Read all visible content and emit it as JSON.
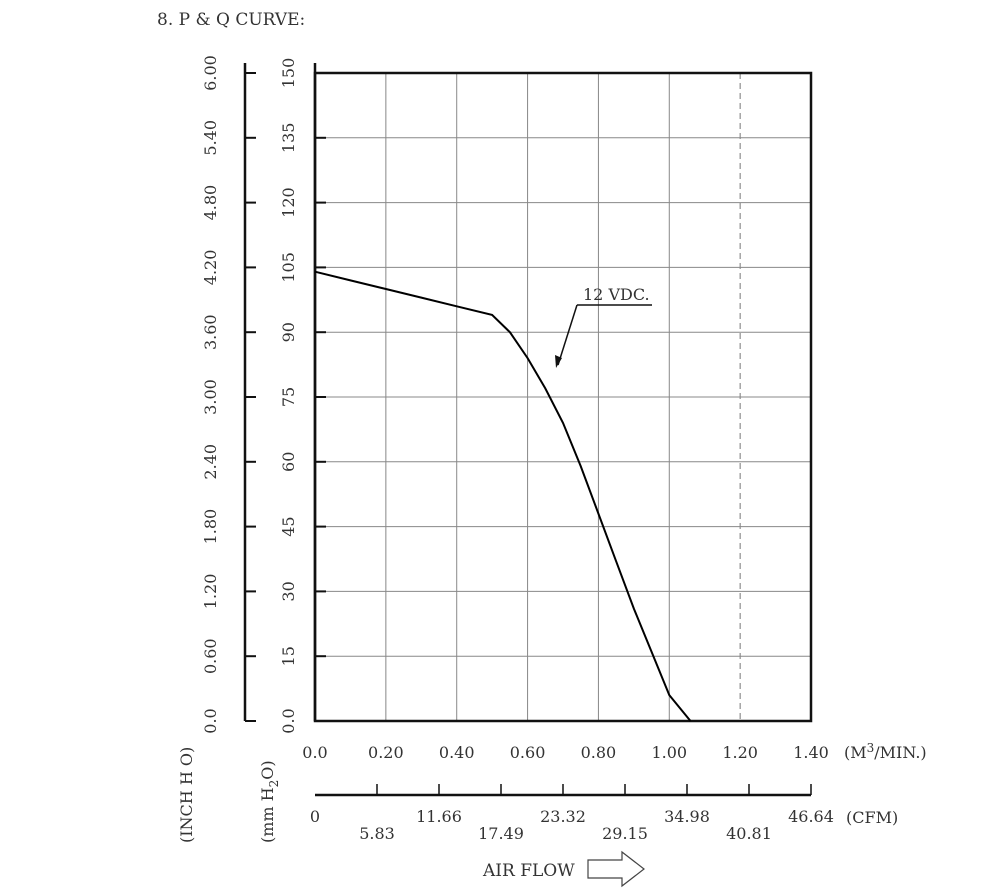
{
  "heading": "8. P & Q CURVE:",
  "chart_data": {
    "type": "line",
    "title": "P & Q CURVE",
    "xlabel": "AIR FLOW",
    "x_unit": "(M³/MIN.)",
    "x_unit_main": "(M",
    "x_unit_sup": "3",
    "x_unit_tail": "/MIN.)",
    "xlim": [
      0,
      1.4
    ],
    "x_ticks": [
      "0.0",
      "0.20",
      "0.40",
      "0.60",
      "0.80",
      "1.00",
      "1.20",
      "1.40"
    ],
    "cfm_unit": "(CFM)",
    "cfm_ticks": [
      "0",
      "5.83",
      "11.66",
      "17.49",
      "23.32",
      "29.15",
      "34.98",
      "40.81",
      "46.64"
    ],
    "mm_unit": "(mm H₂O)",
    "mm_unit_main": "(mm H",
    "mm_unit_sub": "2",
    "mm_unit_tail": "O)",
    "ylim": [
      0,
      150
    ],
    "y_ticks": [
      "0.0",
      "15",
      "30",
      "45",
      "60",
      "75",
      "90",
      "105",
      "120",
      "135",
      "150"
    ],
    "inch_unit": "(INCH H O)",
    "inch_ticks": [
      "0.0",
      "0.60",
      "1.20",
      "1.80",
      "2.40",
      "3.00",
      "3.60",
      "4.20",
      "4.80",
      "5.40",
      "6.00"
    ],
    "grid": true,
    "series": [
      {
        "name": "12 VDC.",
        "color": "#000000",
        "x": [
          0.0,
          0.1,
          0.2,
          0.3,
          0.4,
          0.5,
          0.55,
          0.6,
          0.65,
          0.7,
          0.75,
          0.8,
          0.85,
          0.9,
          0.95,
          1.0,
          1.06
        ],
        "y": [
          104,
          102,
          100,
          98,
          96,
          94,
          90,
          84,
          77,
          69,
          59,
          48,
          37,
          26,
          16,
          6,
          0
        ]
      }
    ]
  }
}
